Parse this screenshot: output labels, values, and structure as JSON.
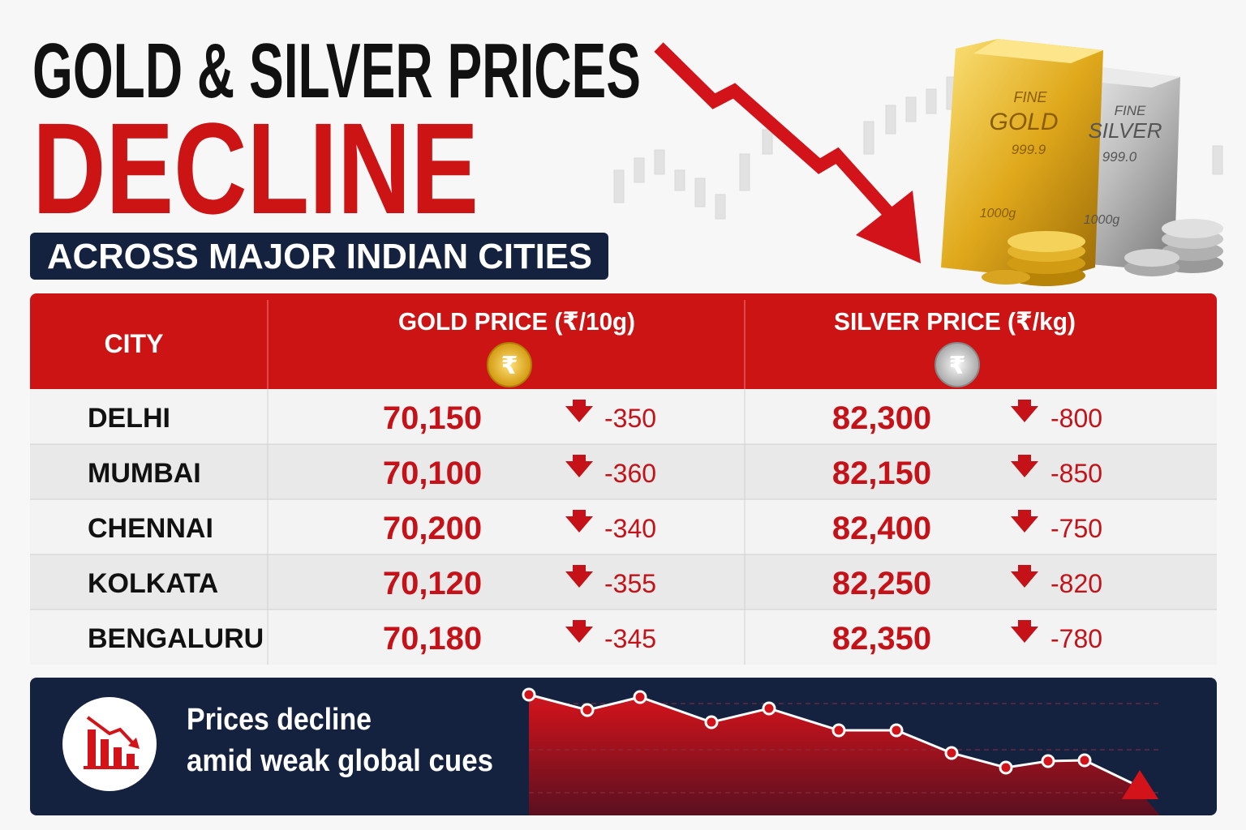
{
  "header": {
    "title_line1": "GOLD & SILVER PRICES",
    "title_line2": "DECLINE",
    "subtitle": "ACROSS MAJOR INDIAN CITIES"
  },
  "bars": [
    {
      "label": "FINE",
      "metal": "GOLD",
      "purity": "999.9",
      "weight": "1000g"
    },
    {
      "label": "FINE",
      "metal": "SILVER",
      "purity": "999.0",
      "weight": "1000g"
    }
  ],
  "table": {
    "columns": [
      "CITY",
      "GOLD PRICE (₹/10g)",
      "SILVER PRICE (₹/kg)"
    ],
    "column_icons": [
      "₹",
      "₹"
    ],
    "rows": [
      [
        "DELHI",
        "70,150",
        "-350",
        "82,300",
        "-800"
      ],
      [
        "MUMBAI",
        "70,100",
        "-360",
        "82,150",
        "-850"
      ],
      [
        "CHENNAI",
        "70,200",
        "-340",
        "82,400",
        "-750"
      ],
      [
        "KOLKATA",
        "70,120",
        "-355",
        "82,250",
        "-820"
      ],
      [
        "BENGALURU",
        "70,180",
        "-345",
        "82,350",
        "-780"
      ]
    ]
  },
  "footer": {
    "text_line1": "Prices decline",
    "text_line2": "amid weak global cues"
  }
}
